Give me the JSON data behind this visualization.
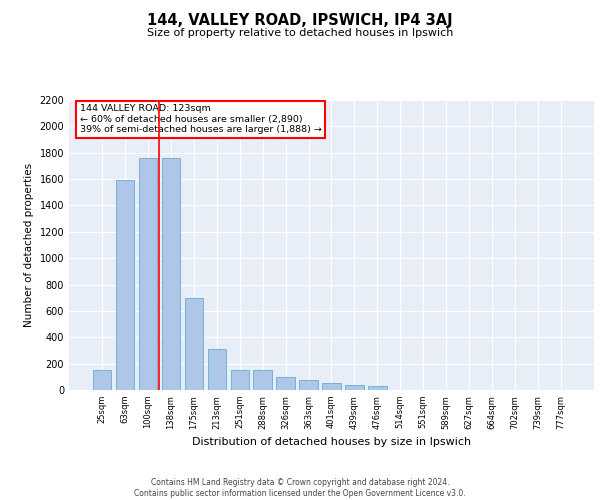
{
  "title": "144, VALLEY ROAD, IPSWICH, IP4 3AJ",
  "subtitle": "Size of property relative to detached houses in Ipswich",
  "xlabel": "Distribution of detached houses by size in Ipswich",
  "ylabel": "Number of detached properties",
  "categories": [
    "25sqm",
    "63sqm",
    "100sqm",
    "138sqm",
    "175sqm",
    "213sqm",
    "251sqm",
    "288sqm",
    "326sqm",
    "363sqm",
    "401sqm",
    "439sqm",
    "476sqm",
    "514sqm",
    "551sqm",
    "589sqm",
    "627sqm",
    "664sqm",
    "702sqm",
    "739sqm",
    "777sqm"
  ],
  "values": [
    150,
    1590,
    1760,
    1760,
    700,
    310,
    155,
    155,
    100,
    75,
    55,
    40,
    30,
    0,
    0,
    0,
    0,
    0,
    0,
    0,
    0
  ],
  "bar_color": "#aec6e8",
  "bar_edge_color": "#6aabd2",
  "background_color": "#e8eef8",
  "grid_color": "#ffffff",
  "vline_x": 2.5,
  "vline_color": "red",
  "annotation_text": "144 VALLEY ROAD: 123sqm\n← 60% of detached houses are smaller (2,890)\n39% of semi-detached houses are larger (1,888) →",
  "annotation_box_color": "white",
  "annotation_box_edge": "red",
  "ylim": [
    0,
    2200
  ],
  "yticks": [
    0,
    200,
    400,
    600,
    800,
    1000,
    1200,
    1400,
    1600,
    1800,
    2000,
    2200
  ],
  "footer_line1": "Contains HM Land Registry data © Crown copyright and database right 2024.",
  "footer_line2": "Contains public sector information licensed under the Open Government Licence v3.0."
}
